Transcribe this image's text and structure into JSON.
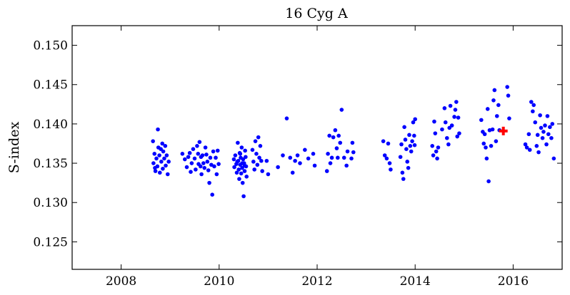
{
  "chart_data": {
    "type": "scatter",
    "title": "16 Cyg A",
    "xlabel": "",
    "ylabel": "S-index",
    "xlim": [
      2007.0,
      2017.0
    ],
    "ylim": [
      0.1215,
      0.1525
    ],
    "xticks": [
      2008,
      2010,
      2012,
      2014,
      2016
    ],
    "xtick_labels": [
      "2008",
      "2010",
      "2012",
      "2014",
      "2016"
    ],
    "yticks": [
      0.125,
      0.13,
      0.135,
      0.14,
      0.145,
      0.15
    ],
    "ytick_labels": [
      "0.125",
      "0.130",
      "0.135",
      "0.140",
      "0.145",
      "0.150"
    ],
    "grid": false,
    "legend": "none",
    "series": [
      {
        "marker": "circle",
        "color": "#0000ff",
        "points": [
          [
            2008.65,
            0.1378
          ],
          [
            2008.68,
            0.1362
          ],
          [
            2008.66,
            0.135
          ],
          [
            2008.7,
            0.134
          ],
          [
            2008.72,
            0.1356
          ],
          [
            2008.75,
            0.1393
          ],
          [
            2008.76,
            0.137
          ],
          [
            2008.74,
            0.1346
          ],
          [
            2008.78,
            0.136
          ],
          [
            2008.79,
            0.1338
          ],
          [
            2008.82,
            0.1352
          ],
          [
            2008.84,
            0.1375
          ],
          [
            2008.86,
            0.1365
          ],
          [
            2008.85,
            0.1343
          ],
          [
            2008.88,
            0.1356
          ],
          [
            2008.9,
            0.1372
          ],
          [
            2008.91,
            0.1347
          ],
          [
            2008.93,
            0.136
          ],
          [
            2008.95,
            0.1336
          ],
          [
            2008.97,
            0.1352
          ],
          [
            2008.69,
            0.1344
          ],
          [
            2008.81,
            0.1368
          ],
          [
            2009.25,
            0.1362
          ],
          [
            2009.3,
            0.1355
          ],
          [
            2009.34,
            0.1345
          ],
          [
            2009.37,
            0.1358
          ],
          [
            2009.4,
            0.1363
          ],
          [
            2009.42,
            0.1339
          ],
          [
            2009.44,
            0.135
          ],
          [
            2009.47,
            0.1368
          ],
          [
            2009.5,
            0.1356
          ],
          [
            2009.52,
            0.1342
          ],
          [
            2009.55,
            0.1372
          ],
          [
            2009.57,
            0.1362
          ],
          [
            2009.58,
            0.1349
          ],
          [
            2009.6,
            0.1377
          ],
          [
            2009.62,
            0.1346
          ],
          [
            2009.64,
            0.1336
          ],
          [
            2009.66,
            0.136
          ],
          [
            2009.68,
            0.135
          ],
          [
            2009.7,
            0.1344
          ],
          [
            2009.72,
            0.137
          ],
          [
            2009.74,
            0.1361
          ],
          [
            2009.76,
            0.1352
          ],
          [
            2009.78,
            0.1341
          ],
          [
            2009.8,
            0.1325
          ],
          [
            2009.82,
            0.1357
          ],
          [
            2009.84,
            0.1348
          ],
          [
            2009.86,
            0.131
          ],
          [
            2009.88,
            0.1365
          ],
          [
            2009.9,
            0.1346
          ],
          [
            2009.93,
            0.1357
          ],
          [
            2009.95,
            0.1336
          ],
          [
            2009.97,
            0.1366
          ],
          [
            2009.99,
            0.1349
          ],
          [
            2009.63,
            0.1358
          ],
          [
            2010.3,
            0.1355
          ],
          [
            2010.31,
            0.1345
          ],
          [
            2010.33,
            0.136
          ],
          [
            2010.35,
            0.1349
          ],
          [
            2010.36,
            0.1338
          ],
          [
            2010.38,
            0.1376
          ],
          [
            2010.39,
            0.1353
          ],
          [
            2010.4,
            0.1342
          ],
          [
            2010.41,
            0.133
          ],
          [
            2010.42,
            0.1363
          ],
          [
            2010.43,
            0.1348
          ],
          [
            2010.44,
            0.1357
          ],
          [
            2010.45,
            0.1337
          ],
          [
            2010.46,
            0.137
          ],
          [
            2010.47,
            0.1344
          ],
          [
            2010.48,
            0.1325
          ],
          [
            2010.49,
            0.1355
          ],
          [
            2010.5,
            0.1308
          ],
          [
            2010.51,
            0.135
          ],
          [
            2010.52,
            0.134
          ],
          [
            2010.53,
            0.1366
          ],
          [
            2010.54,
            0.1358
          ],
          [
            2010.55,
            0.1346
          ],
          [
            2010.56,
            0.1333
          ],
          [
            2010.37,
            0.1352
          ],
          [
            2010.43,
            0.1362
          ],
          [
            2010.47,
            0.135
          ],
          [
            2010.52,
            0.1347
          ],
          [
            2010.68,
            0.1367
          ],
          [
            2010.7,
            0.1352
          ],
          [
            2010.72,
            0.1342
          ],
          [
            2010.74,
            0.1378
          ],
          [
            2010.76,
            0.1362
          ],
          [
            2010.78,
            0.1348
          ],
          [
            2010.8,
            0.1383
          ],
          [
            2010.82,
            0.1357
          ],
          [
            2010.84,
            0.1372
          ],
          [
            2010.86,
            0.1353
          ],
          [
            2010.88,
            0.134
          ],
          [
            2010.97,
            0.1353
          ],
          [
            2011.0,
            0.1336
          ],
          [
            2011.2,
            0.1345
          ],
          [
            2011.3,
            0.136
          ],
          [
            2011.38,
            0.1407
          ],
          [
            2011.45,
            0.1357
          ],
          [
            2011.5,
            0.1338
          ],
          [
            2011.55,
            0.1353
          ],
          [
            2011.6,
            0.136
          ],
          [
            2011.65,
            0.135
          ],
          [
            2011.75,
            0.1367
          ],
          [
            2011.82,
            0.1356
          ],
          [
            2011.92,
            0.1362
          ],
          [
            2011.95,
            0.1347
          ],
          [
            2012.2,
            0.134
          ],
          [
            2012.22,
            0.1362
          ],
          [
            2012.25,
            0.1385
          ],
          [
            2012.27,
            0.135
          ],
          [
            2012.3,
            0.1357
          ],
          [
            2012.33,
            0.1383
          ],
          [
            2012.37,
            0.1392
          ],
          [
            2012.4,
            0.1369
          ],
          [
            2012.42,
            0.1357
          ],
          [
            2012.44,
            0.1385
          ],
          [
            2012.47,
            0.1376
          ],
          [
            2012.5,
            0.1418
          ],
          [
            2012.55,
            0.1357
          ],
          [
            2012.6,
            0.1347
          ],
          [
            2012.62,
            0.1365
          ],
          [
            2012.7,
            0.1356
          ],
          [
            2012.72,
            0.1376
          ],
          [
            2012.74,
            0.1364
          ],
          [
            2013.35,
            0.1378
          ],
          [
            2013.38,
            0.136
          ],
          [
            2013.42,
            0.1356
          ],
          [
            2013.45,
            0.1375
          ],
          [
            2013.48,
            0.135
          ],
          [
            2013.5,
            0.1342
          ],
          [
            2013.7,
            0.1358
          ],
          [
            2013.72,
            0.1374
          ],
          [
            2013.74,
            0.1338
          ],
          [
            2013.76,
            0.133
          ],
          [
            2013.78,
            0.1396
          ],
          [
            2013.8,
            0.138
          ],
          [
            2013.82,
            0.1368
          ],
          [
            2013.84,
            0.1352
          ],
          [
            2013.86,
            0.1344
          ],
          [
            2013.88,
            0.1386
          ],
          [
            2013.9,
            0.1372
          ],
          [
            2013.92,
            0.1365
          ],
          [
            2013.94,
            0.1378
          ],
          [
            2013.96,
            0.1402
          ],
          [
            2013.98,
            0.1385
          ],
          [
            2013.99,
            0.1373
          ],
          [
            2014.0,
            0.1406
          ],
          [
            2014.35,
            0.1372
          ],
          [
            2014.37,
            0.136
          ],
          [
            2014.39,
            0.1403
          ],
          [
            2014.41,
            0.1388
          ],
          [
            2014.43,
            0.1365
          ],
          [
            2014.45,
            0.1356
          ],
          [
            2014.47,
            0.137
          ],
          [
            2014.55,
            0.1393
          ],
          [
            2014.6,
            0.142
          ],
          [
            2014.62,
            0.1402
          ],
          [
            2014.65,
            0.1382
          ],
          [
            2014.68,
            0.1374
          ],
          [
            2014.7,
            0.1395
          ],
          [
            2014.72,
            0.1423
          ],
          [
            2014.75,
            0.1398
          ],
          [
            2014.8,
            0.1409
          ],
          [
            2014.82,
            0.1418
          ],
          [
            2014.84,
            0.1428
          ],
          [
            2014.86,
            0.1384
          ],
          [
            2014.88,
            0.1408
          ],
          [
            2014.9,
            0.1388
          ],
          [
            2015.35,
            0.1405
          ],
          [
            2015.38,
            0.139
          ],
          [
            2015.4,
            0.1375
          ],
          [
            2015.42,
            0.1387
          ],
          [
            2015.44,
            0.137
          ],
          [
            2015.46,
            0.1356
          ],
          [
            2015.48,
            0.1419
          ],
          [
            2015.5,
            0.1327
          ],
          [
            2015.52,
            0.1392
          ],
          [
            2015.55,
            0.1372
          ],
          [
            2015.58,
            0.1393
          ],
          [
            2015.6,
            0.143
          ],
          [
            2015.62,
            0.1443
          ],
          [
            2015.65,
            0.1378
          ],
          [
            2015.67,
            0.141
          ],
          [
            2015.7,
            0.1424
          ],
          [
            2015.72,
            0.1392
          ],
          [
            2015.88,
            0.1447
          ],
          [
            2015.9,
            0.1436
          ],
          [
            2015.92,
            0.1407
          ],
          [
            2016.25,
            0.1374
          ],
          [
            2016.28,
            0.137
          ],
          [
            2016.32,
            0.1387
          ],
          [
            2016.34,
            0.1367
          ],
          [
            2016.37,
            0.1428
          ],
          [
            2016.4,
            0.1416
          ],
          [
            2016.42,
            0.1424
          ],
          [
            2016.45,
            0.1402
          ],
          [
            2016.48,
            0.1372
          ],
          [
            2016.5,
            0.1386
          ],
          [
            2016.52,
            0.1364
          ],
          [
            2016.55,
            0.1411
          ],
          [
            2016.57,
            0.1395
          ],
          [
            2016.6,
            0.1382
          ],
          [
            2016.62,
            0.139
          ],
          [
            2016.65,
            0.1398
          ],
          [
            2016.68,
            0.1374
          ],
          [
            2016.7,
            0.141
          ],
          [
            2016.72,
            0.1387
          ],
          [
            2016.75,
            0.1396
          ],
          [
            2016.78,
            0.1382
          ],
          [
            2016.8,
            0.14
          ],
          [
            2016.83,
            0.1356
          ]
        ]
      },
      {
        "marker": "plus",
        "color": "#ff0000",
        "points": [
          [
            2015.8,
            0.1391
          ]
        ]
      }
    ]
  }
}
